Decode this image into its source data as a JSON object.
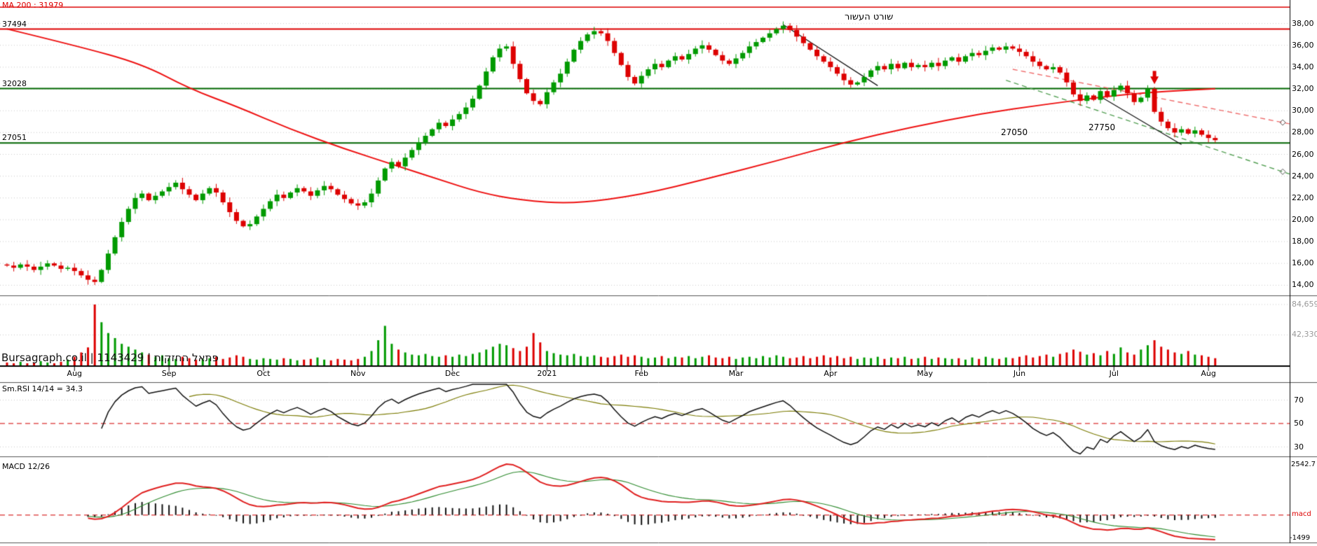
{
  "ui": {
    "watermark": "Bursagraph.co.il | 1143429 | פתאל החזקות"
  },
  "chart_data": {
    "type": "candlestick",
    "price_axis_labels": [
      "38,00",
      "36,00",
      "34,00",
      "32,00",
      "30,00",
      "28,00",
      "26,00",
      "24,00",
      "22,00",
      "20,00",
      "18,00",
      "16,00",
      "14,00"
    ],
    "price_axis_values": [
      38000,
      36000,
      34000,
      32000,
      30000,
      28000,
      26000,
      24000,
      22000,
      20000,
      18000,
      16000,
      14000
    ],
    "months": {
      "labels": [
        "Aug",
        "Sep",
        "Oct",
        "Nov",
        "Dec",
        "2021",
        "Feb",
        "Mar",
        "Apr",
        "May",
        "Jun",
        "Jul",
        "Aug"
      ],
      "indices": [
        10,
        24,
        38,
        52,
        66,
        80,
        94,
        108,
        122,
        136,
        150,
        164,
        178
      ]
    },
    "closes": [
      15800,
      15600,
      15900,
      15700,
      15400,
      15700,
      16000,
      15800,
      15500,
      15600,
      15300,
      14900,
      14500,
      14300,
      15400,
      16900,
      18400,
      19800,
      21000,
      22000,
      22400,
      21800,
      22200,
      22600,
      23000,
      23400,
      22800,
      22300,
      21800,
      22400,
      22900,
      22500,
      21600,
      20700,
      19900,
      19400,
      19600,
      20300,
      21000,
      21700,
      22300,
      22000,
      22500,
      22900,
      22600,
      22200,
      22700,
      23100,
      22800,
      22300,
      21900,
      21500,
      21300,
      21600,
      22400,
      23600,
      24700,
      25300,
      24900,
      25700,
      26400,
      27100,
      27700,
      28300,
      28900,
      28600,
      29200,
      29700,
      30300,
      31100,
      32300,
      33600,
      34900,
      35700,
      35900,
      34300,
      32900,
      31600,
      30900,
      30600,
      31700,
      32600,
      33400,
      34500,
      35600,
      36400,
      37000,
      37300,
      37100,
      36400,
      35300,
      34200,
      33100,
      32500,
      33200,
      33800,
      34300,
      34000,
      34600,
      35000,
      34700,
      35200,
      35700,
      36000,
      35600,
      35100,
      34600,
      34300,
      34800,
      35300,
      35900,
      36300,
      36700,
      37100,
      37500,
      37800,
      37400,
      36800,
      36200,
      35600,
      35000,
      34500,
      34000,
      33400,
      32800,
      32400,
      32600,
      33100,
      33700,
      34100,
      33800,
      34300,
      33900,
      34400,
      34000,
      34200,
      34000,
      34400,
      34100,
      34600,
      34900,
      34500,
      35000,
      35300,
      35100,
      35500,
      35800,
      35600,
      35900,
      35700,
      35400,
      35000,
      34500,
      34100,
      33800,
      34000,
      33500,
      32600,
      31500,
      30900,
      31400,
      31000,
      31800,
      31300,
      31900,
      32300,
      31600,
      30800,
      31200,
      32000,
      29900,
      29000,
      28400,
      28000,
      28300,
      27900,
      28200,
      27800,
      27500,
      27300
    ],
    "volumes": [
      4000,
      3000,
      5000,
      3000,
      4000,
      6000,
      4000,
      3000,
      5000,
      8000,
      12000,
      18000,
      25000,
      84659,
      60000,
      45000,
      38000,
      30000,
      26000,
      22000,
      18000,
      15000,
      12000,
      14000,
      10000,
      9000,
      12000,
      10000,
      8000,
      9000,
      10000,
      12000,
      9000,
      11000,
      14000,
      12000,
      9000,
      8000,
      10000,
      9000,
      8000,
      10000,
      9000,
      7000,
      8000,
      9000,
      11000,
      8000,
      7000,
      9000,
      8000,
      7000,
      9000,
      12000,
      20000,
      35000,
      55000,
      30000,
      22000,
      18000,
      15000,
      14000,
      16000,
      13000,
      12000,
      14000,
      12000,
      15000,
      13000,
      16000,
      18000,
      22000,
      26000,
      30000,
      28000,
      24000,
      20000,
      26000,
      45000,
      32000,
      20000,
      17000,
      15000,
      14000,
      16000,
      13000,
      12000,
      14000,
      12000,
      11000,
      13000,
      15000,
      12000,
      14000,
      12000,
      10000,
      11000,
      13000,
      10000,
      12000,
      11000,
      13000,
      10000,
      12000,
      14000,
      11000,
      10000,
      12000,
      9000,
      11000,
      12000,
      10000,
      13000,
      11000,
      14000,
      12000,
      10000,
      11000,
      13000,
      10000,
      12000,
      14000,
      11000,
      13000,
      10000,
      12000,
      9000,
      11000,
      10000,
      12000,
      9000,
      11000,
      10000,
      12000,
      9000,
      10000,
      12000,
      9000,
      11000,
      10000,
      9000,
      10000,
      8000,
      11000,
      9000,
      12000,
      10000,
      9000,
      11000,
      10000,
      12000,
      14000,
      11000,
      13000,
      15000,
      12000,
      16000,
      18000,
      22000,
      19000,
      15000,
      17000,
      14000,
      20000,
      16000,
      25000,
      18000,
      15000,
      22000,
      28000,
      35000,
      26000,
      22000,
      18000,
      16000,
      20000,
      15000,
      14000,
      12000,
      10000
    ],
    "volume_axis": {
      "labels": [
        "84,659",
        "42,330"
      ],
      "values": [
        84659,
        42330
      ]
    },
    "ma200": {
      "label": "MA 200 : 31979",
      "color": "#ee1111",
      "anchors": [
        [
          0,
          37500
        ],
        [
          10,
          36000
        ],
        [
          20,
          34300
        ],
        [
          27,
          32028
        ],
        [
          34,
          30400
        ],
        [
          42,
          28300
        ],
        [
          50,
          26500
        ],
        [
          58,
          24900
        ],
        [
          64,
          23700
        ],
        [
          70,
          22500
        ],
        [
          76,
          21800
        ],
        [
          84,
          21450
        ],
        [
          94,
          22300
        ],
        [
          104,
          23800
        ],
        [
          114,
          25400
        ],
        [
          124,
          27100
        ],
        [
          134,
          28500
        ],
        [
          144,
          29700
        ],
        [
          154,
          30600
        ],
        [
          164,
          31400
        ],
        [
          172,
          31800
        ],
        [
          179,
          32020
        ]
      ]
    },
    "hlines": [
      {
        "value": 39500,
        "color": "#dd0000",
        "w": 1.5,
        "label": ""
      },
      {
        "value": 37494,
        "color": "#dd0000",
        "w": 2,
        "label": "37494"
      },
      {
        "value": 32028,
        "color": "#006600",
        "w": 2,
        "label": "32028"
      },
      {
        "value": 27051,
        "color": "#006600",
        "w": 2,
        "label": "27051"
      }
    ],
    "trendlines": [
      {
        "p1": [
          115,
          37900
        ],
        "p2": [
          129,
          32300
        ],
        "color": "#111111"
      },
      {
        "p1": [
          162,
          31300
        ],
        "p2": [
          174,
          26900
        ],
        "color": "#111111"
      }
    ],
    "dashed_lines": [
      {
        "p1": [
          149,
          33800
        ],
        "p2": [
          190,
          28800
        ],
        "color": "#ef6a6a"
      },
      {
        "p1": [
          148,
          32800
        ],
        "p2": [
          190,
          24200
        ],
        "color": "#55a055"
      }
    ],
    "annotations": {
      "short_label": "שורט העשור",
      "level_a": "27050",
      "level_b": "27750"
    },
    "arrow": {
      "index": 170,
      "color": "#dd0000"
    },
    "candle_colors": {
      "up": "#009a00",
      "down": "#dd0000"
    },
    "rsi": {
      "label": "Sm.RSI 14/14 = 34.3",
      "period": 14,
      "smooth": 14,
      "axis_labels": [
        "70",
        "50",
        "30"
      ],
      "axis_values": [
        70,
        50,
        30
      ],
      "mid_value": 50
    },
    "macd": {
      "label": "MACD 12/26",
      "fast": 12,
      "slow": 26,
      "signal": 9,
      "axis_top": "2542.7",
      "axis_zero_label": "macd",
      "axis_bottom": "-1499"
    }
  }
}
